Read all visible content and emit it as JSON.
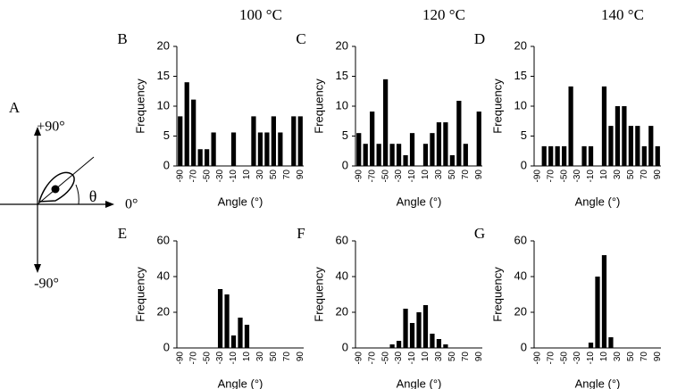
{
  "figure": {
    "column_headers": [
      "100 °C",
      "120 °C",
      "140 °C"
    ],
    "diagram": {
      "label": "A",
      "top": "+90°",
      "right": "0°",
      "bottom": "-90°",
      "angle": "θ"
    }
  },
  "chart_data": [
    {
      "type": "bar",
      "panel_label": "B",
      "ylabel": "Frequency",
      "xlabel": "Angle (°)",
      "categories": [
        "-90",
        null,
        "-70",
        null,
        "-50",
        null,
        "-30",
        null,
        "-10",
        null,
        "10",
        null,
        "30",
        null,
        "50",
        null,
        "70",
        null,
        "90"
      ],
      "values": [
        8.3,
        14,
        11.1,
        2.8,
        2.8,
        5.6,
        0,
        0,
        5.6,
        0,
        0,
        8.3,
        5.6,
        5.6,
        8.3,
        5.6,
        0,
        8.3,
        8.3
      ],
      "color": "#000000",
      "ylim": [
        0,
        20
      ],
      "yticks": [
        0,
        5,
        10,
        15,
        20
      ]
    },
    {
      "type": "bar",
      "panel_label": "C",
      "ylabel": "Frequency",
      "xlabel": "Angle (°)",
      "categories": [
        "-90",
        null,
        "-70",
        null,
        "-50",
        null,
        "-30",
        null,
        "-10",
        null,
        "10",
        null,
        "30",
        null,
        "50",
        null,
        "70",
        null,
        "90"
      ],
      "values": [
        5.5,
        3.7,
        9.1,
        3.7,
        14.5,
        3.7,
        3.7,
        1.8,
        5.5,
        0,
        3.7,
        5.5,
        7.3,
        7.3,
        1.8,
        10.9,
        3.7,
        0,
        9.1
      ],
      "color": "#000000",
      "ylim": [
        0,
        20
      ],
      "yticks": [
        0,
        5,
        10,
        15,
        20
      ]
    },
    {
      "type": "bar",
      "panel_label": "D",
      "ylabel": "Frequency",
      "xlabel": "Angle (°)",
      "categories": [
        "-90",
        null,
        "-70",
        null,
        "-50",
        null,
        "-30",
        null,
        "-10",
        null,
        "10",
        null,
        "30",
        null,
        "50",
        null,
        "70",
        null,
        "90"
      ],
      "values": [
        0,
        3.3,
        3.3,
        3.3,
        3.3,
        13.3,
        0,
        3.3,
        3.3,
        0,
        13.3,
        6.7,
        10,
        10,
        6.7,
        6.7,
        3.3,
        6.7,
        3.3
      ],
      "color": "#000000",
      "ylim": [
        0,
        20
      ],
      "yticks": [
        0,
        5,
        10,
        15,
        20
      ]
    },
    {
      "type": "bar",
      "panel_label": "E",
      "ylabel": "Frequency",
      "xlabel": "Angle (°)",
      "categories": [
        "-90",
        null,
        "-70",
        null,
        "-50",
        null,
        "-30",
        null,
        "-10",
        null,
        "10",
        null,
        "30",
        null,
        "50",
        null,
        "70",
        null,
        "90"
      ],
      "values": [
        0,
        0,
        0,
        0,
        0,
        0,
        33,
        30,
        7,
        17,
        13,
        0,
        0,
        0,
        0,
        0,
        0,
        0,
        0
      ],
      "color": "#000000",
      "ylim": [
        0,
        60
      ],
      "yticks": [
        0,
        20,
        40,
        60
      ]
    },
    {
      "type": "bar",
      "panel_label": "F",
      "ylabel": "Frequency",
      "xlabel": "Angle (°)",
      "categories": [
        "-90",
        null,
        "-70",
        null,
        "-50",
        null,
        "-30",
        null,
        "-10",
        null,
        "10",
        null,
        "30",
        null,
        "50",
        null,
        "70",
        null,
        "90"
      ],
      "values": [
        0,
        0,
        0,
        0,
        0,
        2,
        4,
        22,
        14,
        20,
        24,
        8,
        5,
        2,
        0,
        0,
        0,
        0,
        0
      ],
      "color": "#000000",
      "ylim": [
        0,
        60
      ],
      "yticks": [
        0,
        20,
        40,
        60
      ]
    },
    {
      "type": "bar",
      "panel_label": "G",
      "ylabel": "Frequency",
      "xlabel": "Angle (°)",
      "categories": [
        "-90",
        null,
        "-70",
        null,
        "-50",
        null,
        "-30",
        null,
        "-10",
        null,
        "10",
        null,
        "30",
        null,
        "50",
        null,
        "70",
        null,
        "90"
      ],
      "values": [
        0,
        0,
        0,
        0,
        0,
        0,
        0,
        0,
        3,
        40,
        52,
        6,
        0,
        0,
        0,
        0,
        0,
        0,
        0
      ],
      "color": "#000000",
      "ylim": [
        0,
        60
      ],
      "yticks": [
        0,
        20,
        40,
        60
      ]
    }
  ]
}
